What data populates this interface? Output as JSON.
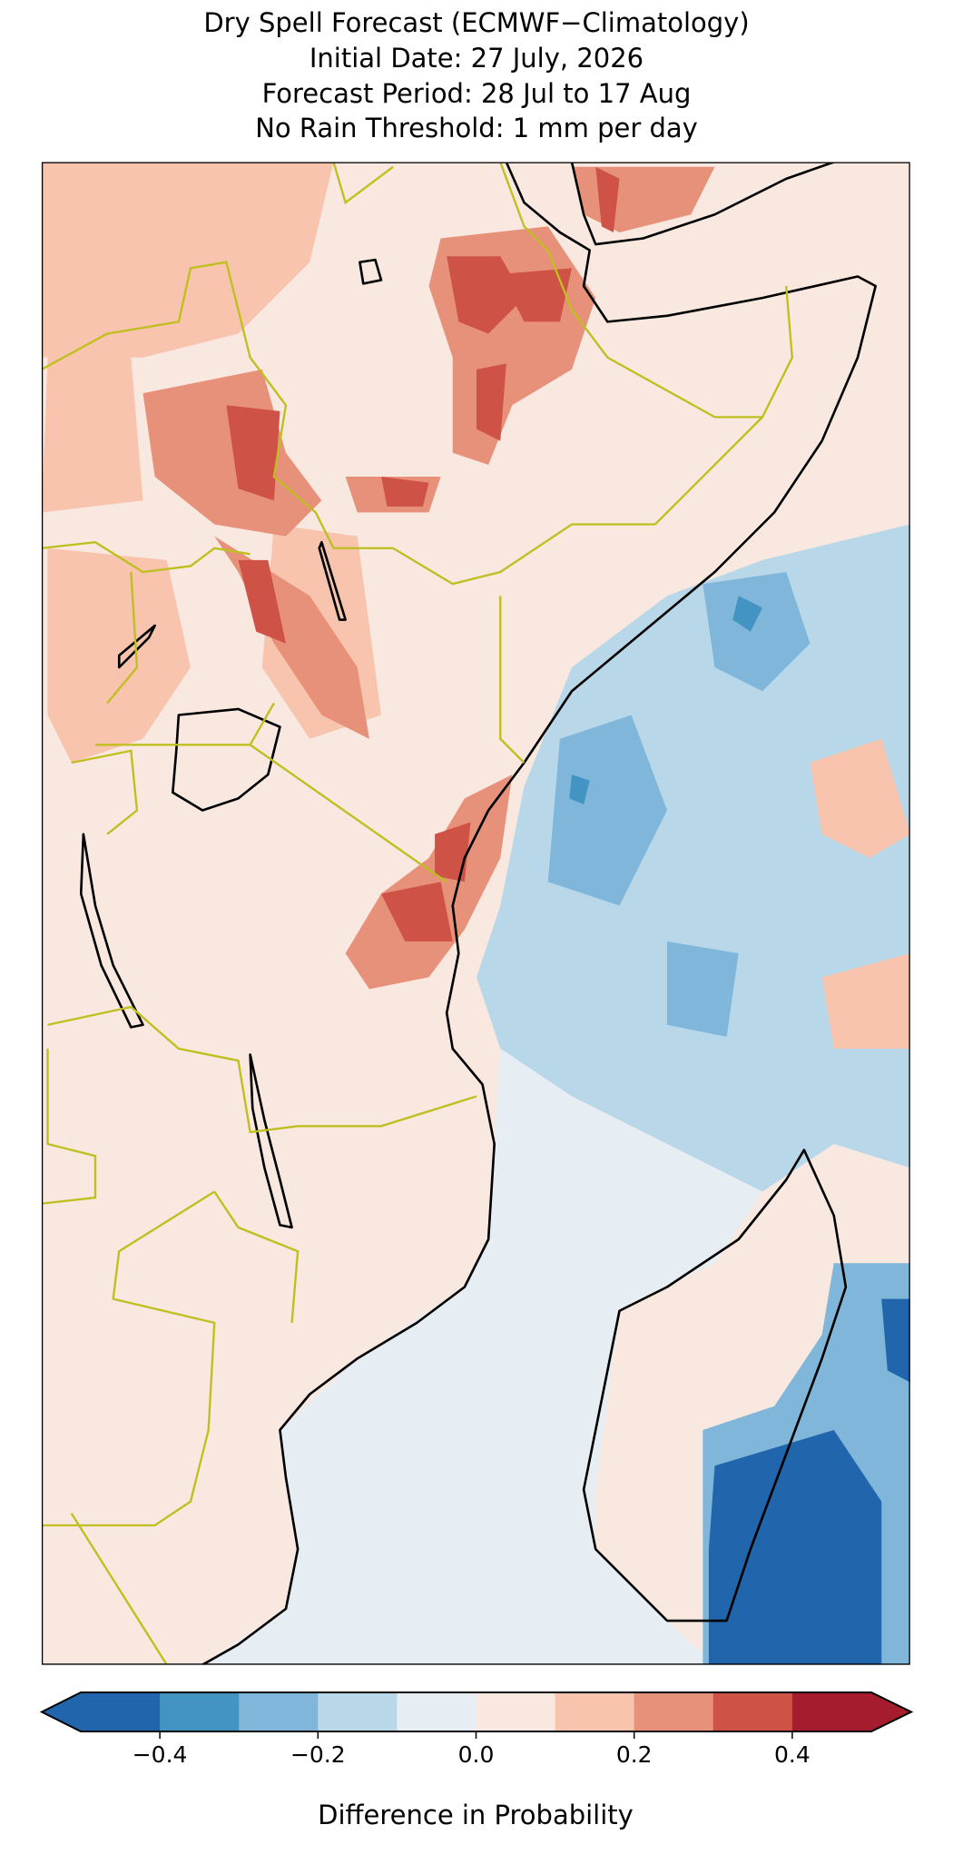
{
  "title": [
    "Dry Spell Forecast (ECMWF−Climatology)",
    "Initial Date: 27 July, 2026",
    "Forecast Period: 28 Jul to 17 Aug",
    "No Rain Threshold: 1 mm per day"
  ],
  "colorbar": {
    "label": "Difference in Probability",
    "bounds": [
      -0.5,
      -0.4,
      -0.3,
      -0.2,
      -0.1,
      0,
      0.1,
      0.2,
      0.3,
      0.4,
      0.5
    ],
    "colors": [
      "#2166ac",
      "#4393c3",
      "#7fb6d9",
      "#b8d8ea",
      "#e6eef4",
      "#f9e8e0",
      "#f8c4ad",
      "#e8917a",
      "#cf5246",
      "#a51c2e"
    ],
    "ticks": [
      {
        "value": -0.4,
        "label": "−0.4"
      },
      {
        "value": -0.2,
        "label": "−0.2"
      },
      {
        "value": 0,
        "label": "0.0"
      },
      0.2,
      0.4
    ]
  }
}
